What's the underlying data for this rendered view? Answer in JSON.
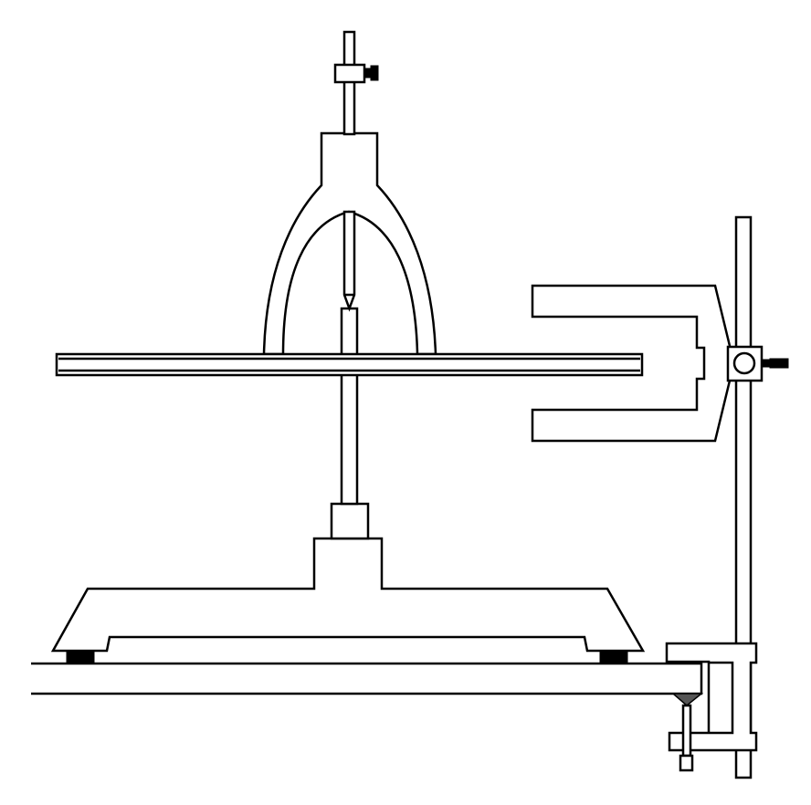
{
  "diagram": {
    "colors": {
      "line": "#000000",
      "fill": "#ffffff",
      "pad": "#000000",
      "screw_tip": "#555555"
    },
    "parts": [
      "vertical-rod",
      "rod-clamp-collar",
      "clamp-thumb-screw",
      "forked-yoke",
      "pointer-needle",
      "needle-tip",
      "horizontal-bar-magnet",
      "pivot-support-post",
      "post-collar",
      "base-stand",
      "rubber-foot-left",
      "rubber-foot-right",
      "table-top",
      "retort-stand-rod",
      "horseshoe-electromagnet",
      "magnet-clamp-boss",
      "boss-thumb-screw",
      "table-c-clamp",
      "c-clamp-screw"
    ]
  }
}
